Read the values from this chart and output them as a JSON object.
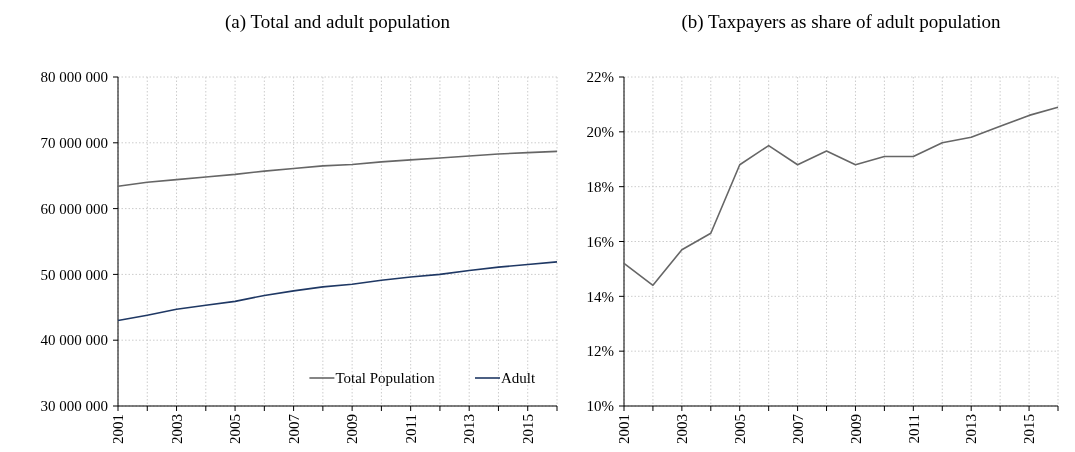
{
  "chart_data": [
    {
      "type": "line",
      "title": "(a) Total and adult population",
      "x": [
        2001,
        2002,
        2003,
        2004,
        2005,
        2006,
        2007,
        2008,
        2009,
        2010,
        2011,
        2012,
        2013,
        2014,
        2015,
        2016
      ],
      "series": [
        {
          "name": "Total Population",
          "color": "#666666",
          "values": [
            63400000,
            64000000,
            64400000,
            64800000,
            65200000,
            65700000,
            66100000,
            66500000,
            66700000,
            67100000,
            67400000,
            67700000,
            68000000,
            68300000,
            68500000,
            68700000
          ]
        },
        {
          "name": "Adult",
          "color": "#1f3864",
          "values": [
            43000000,
            43800000,
            44700000,
            45300000,
            45900000,
            46800000,
            47500000,
            48100000,
            48500000,
            49100000,
            49600000,
            50000000,
            50600000,
            51100000,
            51500000,
            51900000
          ]
        }
      ],
      "xlim": [
        2001,
        2016
      ],
      "xticks": [
        2001,
        {
          "value": 2002,
          "label": null
        },
        2003,
        {
          "value": 2004,
          "label": null
        },
        2005,
        {
          "value": 2006,
          "label": null
        },
        2007,
        {
          "value": 2008,
          "label": null
        },
        2009,
        {
          "value": 2010,
          "label": null
        },
        2011,
        {
          "value": 2012,
          "label": null
        },
        2013,
        {
          "value": 2014,
          "label": null
        },
        2015,
        {
          "value": 2016,
          "label": null
        }
      ],
      "ylim": [
        30000000,
        80000000
      ],
      "yticks": [
        {
          "value": 30000000,
          "label": "30 000 000"
        },
        {
          "value": 40000000,
          "label": "40 000 000"
        },
        {
          "value": 50000000,
          "label": "50 000 000"
        },
        {
          "value": 60000000,
          "label": "60 000 000"
        },
        {
          "value": 70000000,
          "label": "70 000 000"
        },
        {
          "value": 80000000,
          "label": "80 000 000"
        }
      ],
      "grid": true,
      "legend": "bottom right"
    },
    {
      "type": "line",
      "title": "(b) Taxpayers as share of adult population",
      "x": [
        2001,
        2002,
        2003,
        2004,
        2005,
        2006,
        2007,
        2008,
        2009,
        2010,
        2011,
        2012,
        2013,
        2014,
        2015,
        2016
      ],
      "series": [
        {
          "color": "#666666",
          "values": [
            15.2,
            14.4,
            15.7,
            16.3,
            18.8,
            19.5,
            18.8,
            19.3,
            18.8,
            19.1,
            19.1,
            19.6,
            19.8,
            20.2,
            20.6,
            20.9
          ]
        }
      ],
      "xlim": [
        2001,
        2016
      ],
      "xticks": [
        2001,
        {
          "value": 2002,
          "label": null
        },
        2003,
        {
          "value": 2004,
          "label": null
        },
        2005,
        {
          "value": 2006,
          "label": null
        },
        2007,
        {
          "value": 2008,
          "label": null
        },
        2009,
        {
          "value": 2010,
          "label": null
        },
        2011,
        {
          "value": 2012,
          "label": null
        },
        2013,
        {
          "value": 2014,
          "label": null
        },
        2015,
        {
          "value": 2016,
          "label": null
        }
      ],
      "ylim": [
        10,
        22
      ],
      "yticks": [
        {
          "value": 10,
          "label": "10%"
        },
        {
          "value": 12,
          "label": "12%"
        },
        {
          "value": 14,
          "label": "14%"
        },
        {
          "value": 16,
          "label": "16%"
        },
        {
          "value": 18,
          "label": "18%"
        },
        {
          "value": 20,
          "label": "20%"
        },
        {
          "value": 22,
          "label": "22%"
        }
      ],
      "grid": true
    }
  ]
}
